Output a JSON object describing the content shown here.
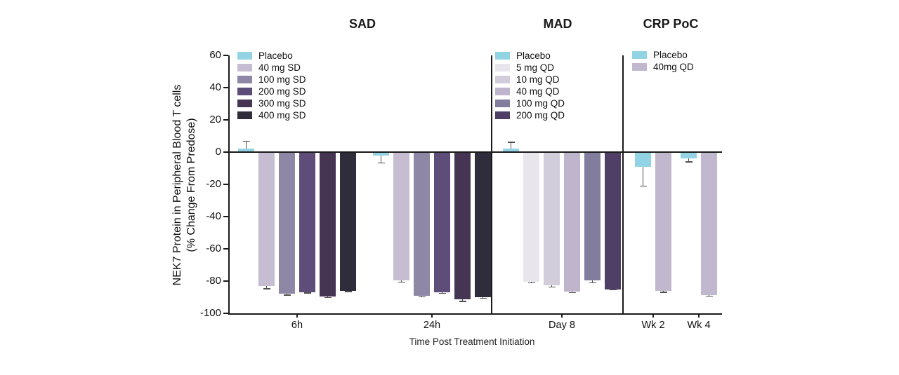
{
  "figure": {
    "ylabel_line1": "NEK7 Protein in Peripheral Blood T cells",
    "ylabel_line2": "(% Change From Predose)",
    "xlabel": "Time Post Treatment Initiation"
  },
  "chart_data": {
    "type": "bar",
    "title": "",
    "ylabel": "NEK7 Protein in Peripheral Blood T cells (% Change From Predose)",
    "xlabel": "Time Post Treatment Initiation",
    "ylim": [
      -100,
      60
    ],
    "yticks": [
      60,
      40,
      20,
      0,
      -20,
      -40,
      -60,
      -80,
      -100
    ],
    "grid": false,
    "error_bars": "one-sided, extending away from zero",
    "legend_position": "top-left inside each panel",
    "panels": [
      {
        "title": "SAD",
        "legend": [
          {
            "label": "Placebo",
            "color": "#93d4e4"
          },
          {
            "label": "40 mg SD",
            "color": "#c6bdd3"
          },
          {
            "label": "100 mg SD",
            "color": "#8e88a6"
          },
          {
            "label": "200 mg SD",
            "color": "#5f4d79"
          },
          {
            "label": "300 mg SD",
            "color": "#453553"
          },
          {
            "label": "400 mg SD",
            "color": "#2f2d3c"
          }
        ],
        "groups": [
          {
            "label": "6h",
            "bars": [
              {
                "series": "Placebo",
                "value": 2,
                "error": 5
              },
              {
                "series": "40 mg SD",
                "value": -83,
                "error": 2
              },
              {
                "series": "100 mg SD",
                "value": -88,
                "error": 1
              },
              {
                "series": "200 mg SD",
                "value": -87,
                "error": 0.8
              },
              {
                "series": "300 mg SD",
                "value": -89.5,
                "error": 1
              },
              {
                "series": "400 mg SD",
                "value": -86,
                "error": 0.8
              }
            ]
          },
          {
            "label": "24h",
            "bars": [
              {
                "series": "Placebo",
                "value": -2,
                "error": 5
              },
              {
                "series": "40 mg SD",
                "value": -79.5,
                "error": 1.5
              },
              {
                "series": "100 mg SD",
                "value": -89,
                "error": 1
              },
              {
                "series": "200 mg SD",
                "value": -87,
                "error": 1
              },
              {
                "series": "300 mg SD",
                "value": -91.5,
                "error": 1.5
              },
              {
                "series": "400 mg SD",
                "value": -90,
                "error": 1
              }
            ]
          }
        ]
      },
      {
        "title": "MAD",
        "legend": [
          {
            "label": "Placebo",
            "color": "#93d4e4"
          },
          {
            "label": "5 mg QD",
            "color": "#e8e6ec"
          },
          {
            "label": "10 mg QD",
            "color": "#d2cdda"
          },
          {
            "label": "40 mg QD",
            "color": "#beb4cb"
          },
          {
            "label": "100 mg QD",
            "color": "#827c9d"
          },
          {
            "label": "200 mg QD",
            "color": "#4f3e66"
          }
        ],
        "groups": [
          {
            "label": "Day 8",
            "bars": [
              {
                "series": "Placebo",
                "value": 2,
                "error": 4.5
              },
              {
                "series": "5 mg QD",
                "value": -80.5,
                "error": 1
              },
              {
                "series": "10 mg QD",
                "value": -82.5,
                "error": 1.5
              },
              {
                "series": "40 mg QD",
                "value": -86.5,
                "error": 1
              },
              {
                "series": "100 mg QD",
                "value": -79.5,
                "error": 2
              },
              {
                "series": "200 mg QD",
                "value": -85,
                "error": 0.8
              }
            ]
          }
        ]
      },
      {
        "title": "CRP PoC",
        "legend": [
          {
            "label": "Placebo",
            "color": "#93d4e4"
          },
          {
            "label": "40mg QD",
            "color": "#c1b8cf"
          }
        ],
        "groups": [
          {
            "label": "Wk 2",
            "bars": [
              {
                "series": "Placebo",
                "value": -9,
                "error": 12.5
              },
              {
                "series": "40mg QD",
                "value": -86,
                "error": 1.3
              }
            ]
          },
          {
            "label": "Wk 4",
            "bars": [
              {
                "series": "Placebo",
                "value": -4,
                "error": 2.5
              },
              {
                "series": "40mg QD",
                "value": -88.5,
                "error": 1.2
              }
            ]
          }
        ]
      }
    ]
  }
}
